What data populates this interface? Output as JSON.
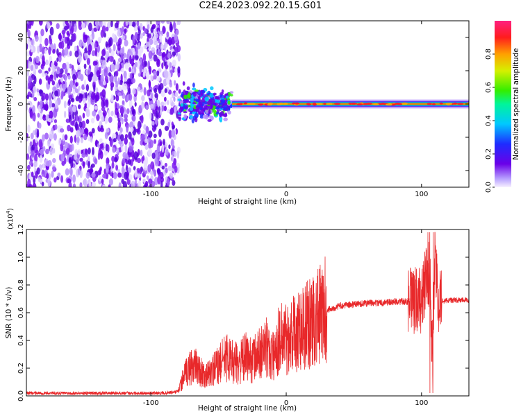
{
  "title": "C2E4.2023.092.20.15.G01",
  "colors": {
    "background": "#ffffff",
    "scatter_purple": "#6a00e8",
    "scatter_light": "#c9a8ff",
    "ridge_core": "#ff2020",
    "snr_line": "#e8282a",
    "axis": "#000000"
  },
  "chart_data": [
    {
      "type": "heatmap",
      "title": "",
      "xlabel": "Height of straight line (km)",
      "ylabel": "Frequency (Hz)",
      "xlim": [
        -192,
        135
      ],
      "ylim": [
        -50,
        50
      ],
      "xticks": [
        -100,
        0,
        100
      ],
      "yticks": [
        -40,
        -20,
        0,
        20,
        40
      ],
      "xtick_labels": [
        "-100",
        "0",
        "100"
      ],
      "ytick_labels": [
        "-40",
        "-20",
        "0",
        "20",
        "40"
      ],
      "grid": false,
      "colorbar": {
        "label": "Normalized spectral amplitude",
        "range": [
          0,
          1
        ],
        "ticks": [
          0.0,
          0.2,
          0.4,
          0.6,
          0.8
        ],
        "tick_labels": [
          "0.0",
          "0.2",
          "0.4",
          "0.6",
          "0.8"
        ],
        "colormap": "rainbow (purple-blue-cyan-green-yellow-red-magenta)"
      },
      "regions": [
        {
          "description": "broadband noise",
          "x_range": [
            -192,
            -79
          ],
          "freq_range": [
            -50,
            50
          ],
          "amplitude": 0.15
        },
        {
          "description": "turbulent band",
          "x_range": [
            -79,
            -40
          ],
          "freq_range": [
            -8,
            8
          ],
          "amplitude": 0.4
        },
        {
          "description": "narrow carrier line",
          "x_range": [
            -40,
            135
          ],
          "freq_center": 0,
          "freq_halfwidth": 2,
          "amplitude": 0.95
        }
      ]
    },
    {
      "type": "line",
      "title": "",
      "xlabel": "Height of straight line (km)",
      "ylabel": "SNR (10 * v/v)",
      "y_multiplier_label": "(x10",
      "y_multiplier_exp": "4",
      "xlim": [
        -192,
        135
      ],
      "ylim": [
        0,
        1.2
      ],
      "xticks": [
        -100,
        0,
        100
      ],
      "yticks": [
        0.0,
        0.2,
        0.4,
        0.6,
        0.8,
        1.0,
        1.2
      ],
      "xtick_labels": [
        "-100",
        "0",
        "100"
      ],
      "ytick_labels": [
        "0.0",
        "0.2",
        "0.4",
        "0.6",
        "0.8",
        "1.0",
        "1.2"
      ],
      "grid": false,
      "series": [
        {
          "color": "#e8282a",
          "x": [
            -192,
            -160,
            -120,
            -90,
            -80,
            -75,
            -70,
            -65,
            -60,
            -55,
            -50,
            -45,
            -40,
            -35,
            -30,
            -25,
            -20,
            -15,
            -10,
            -5,
            0,
            5,
            10,
            15,
            20,
            25,
            30,
            40,
            50,
            60,
            70,
            80,
            90,
            95,
            100,
            103,
            106,
            108,
            110,
            113,
            120,
            135
          ],
          "y": [
            0.02,
            0.02,
            0.02,
            0.02,
            0.03,
            0.15,
            0.22,
            0.2,
            0.13,
            0.18,
            0.22,
            0.28,
            0.25,
            0.23,
            0.28,
            0.26,
            0.3,
            0.35,
            0.28,
            0.42,
            0.42,
            0.45,
            0.5,
            0.5,
            0.55,
            0.58,
            0.62,
            0.65,
            0.66,
            0.67,
            0.67,
            0.68,
            0.68,
            0.68,
            0.7,
            0.82,
            0.9,
            0.3,
            0.9,
            0.68,
            0.69,
            0.69
          ]
        }
      ]
    }
  ]
}
